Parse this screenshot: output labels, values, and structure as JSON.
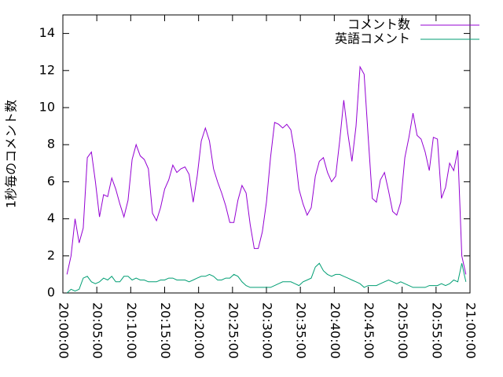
{
  "chart_data": {
    "type": "line",
    "y_label": "1秒毎のコメント数",
    "x": [
      "20:00:36",
      "20:01:12",
      "20:01:48",
      "20:02:24",
      "20:03:00",
      "20:03:36",
      "20:04:12",
      "20:04:48",
      "20:05:24",
      "20:06:00",
      "20:06:36",
      "20:07:12",
      "20:07:48",
      "20:08:24",
      "20:09:00",
      "20:09:36",
      "20:10:12",
      "20:10:48",
      "20:11:24",
      "20:12:00",
      "20:12:36",
      "20:13:12",
      "20:13:48",
      "20:14:24",
      "20:15:00",
      "20:15:36",
      "20:16:12",
      "20:16:48",
      "20:17:24",
      "20:18:00",
      "20:18:36",
      "20:19:12",
      "20:19:48",
      "20:20:24",
      "20:21:00",
      "20:21:36",
      "20:22:12",
      "20:22:48",
      "20:23:24",
      "20:24:00",
      "20:24:36",
      "20:25:12",
      "20:25:48",
      "20:26:24",
      "20:27:00",
      "20:27:36",
      "20:28:12",
      "20:28:48",
      "20:29:24",
      "20:30:00",
      "20:30:36",
      "20:31:12",
      "20:31:48",
      "20:32:24",
      "20:33:00",
      "20:33:36",
      "20:34:12",
      "20:34:48",
      "20:35:24",
      "20:36:00",
      "20:36:36",
      "20:37:12",
      "20:37:48",
      "20:38:24",
      "20:39:00",
      "20:39:36",
      "20:40:12",
      "20:40:48",
      "20:41:24",
      "20:42:00",
      "20:42:36",
      "20:43:12",
      "20:43:48",
      "20:44:24",
      "20:45:00",
      "20:45:36",
      "20:46:12",
      "20:46:48",
      "20:47:24",
      "20:48:00",
      "20:48:36",
      "20:49:12",
      "20:49:48",
      "20:50:24",
      "20:51:00",
      "20:51:36",
      "20:52:12",
      "20:52:48",
      "20:53:24",
      "20:54:00",
      "20:54:36",
      "20:55:12",
      "20:55:48",
      "20:56:24",
      "20:57:00",
      "20:57:36",
      "20:58:12",
      "20:58:48",
      "20:59:24"
    ],
    "series": [
      {
        "name": "コメント数",
        "color": "#9400d3",
        "values": [
          1.0,
          2.0,
          4.0,
          2.7,
          3.5,
          7.3,
          7.6,
          6.0,
          4.1,
          5.3,
          5.2,
          6.2,
          5.6,
          4.8,
          4.1,
          5.0,
          7.2,
          8.0,
          7.4,
          7.2,
          6.7,
          4.3,
          3.9,
          4.6,
          5.6,
          6.1,
          6.9,
          6.5,
          6.7,
          6.8,
          6.4,
          4.9,
          6.3,
          8.2,
          8.9,
          8.2,
          6.7,
          6.0,
          5.4,
          4.7,
          3.8,
          3.8,
          5.0,
          5.8,
          5.4,
          3.7,
          2.4,
          2.4,
          3.3,
          4.9,
          7.3,
          9.2,
          9.1,
          8.9,
          9.1,
          8.8,
          7.5,
          5.6,
          4.8,
          4.2,
          4.6,
          6.3,
          7.1,
          7.3,
          6.5,
          6.0,
          6.3,
          8.2,
          10.4,
          8.6,
          7.1,
          9.0,
          12.2,
          11.8,
          8.4,
          5.1,
          4.9,
          6.1,
          6.5,
          5.5,
          4.4,
          4.2,
          4.9,
          7.3,
          8.4,
          9.7,
          8.5,
          8.3,
          7.6,
          6.6,
          8.4,
          8.3,
          5.1,
          5.7,
          7.0,
          6.6,
          7.7,
          2.0,
          1.0
        ]
      },
      {
        "name": "英語コメント",
        "color": "#009e73",
        "values": [
          0.0,
          0.2,
          0.1,
          0.2,
          0.8,
          0.9,
          0.6,
          0.5,
          0.6,
          0.8,
          0.7,
          0.9,
          0.6,
          0.6,
          0.9,
          0.9,
          0.7,
          0.8,
          0.7,
          0.7,
          0.6,
          0.6,
          0.6,
          0.7,
          0.7,
          0.8,
          0.8,
          0.7,
          0.7,
          0.7,
          0.6,
          0.7,
          0.8,
          0.9,
          0.9,
          1.0,
          0.9,
          0.7,
          0.7,
          0.8,
          0.8,
          1.0,
          0.9,
          0.6,
          0.4,
          0.3,
          0.3,
          0.3,
          0.3,
          0.3,
          0.3,
          0.4,
          0.5,
          0.6,
          0.6,
          0.6,
          0.5,
          0.4,
          0.6,
          0.7,
          0.8,
          1.4,
          1.6,
          1.2,
          1.0,
          0.9,
          1.0,
          1.0,
          0.9,
          0.8,
          0.7,
          0.6,
          0.5,
          0.3,
          0.4,
          0.4,
          0.4,
          0.5,
          0.6,
          0.7,
          0.6,
          0.5,
          0.6,
          0.5,
          0.4,
          0.3,
          0.3,
          0.3,
          0.3,
          0.4,
          0.4,
          0.4,
          0.5,
          0.4,
          0.5,
          0.7,
          0.6,
          1.6,
          0.6
        ]
      }
    ],
    "xlim": [
      "20:00:00",
      "21:00:00"
    ],
    "xticks": [
      "20:00:00",
      "20:05:00",
      "20:10:00",
      "20:15:00",
      "20:20:00",
      "20:25:00",
      "20:30:00",
      "20:35:00",
      "20:40:00",
      "20:45:00",
      "20:50:00",
      "20:55:00",
      "21:00:00"
    ],
    "ylim": [
      0,
      15
    ],
    "yticks": [
      0,
      2,
      4,
      6,
      8,
      10,
      12,
      14
    ],
    "legend": "top-right",
    "grid": false
  }
}
